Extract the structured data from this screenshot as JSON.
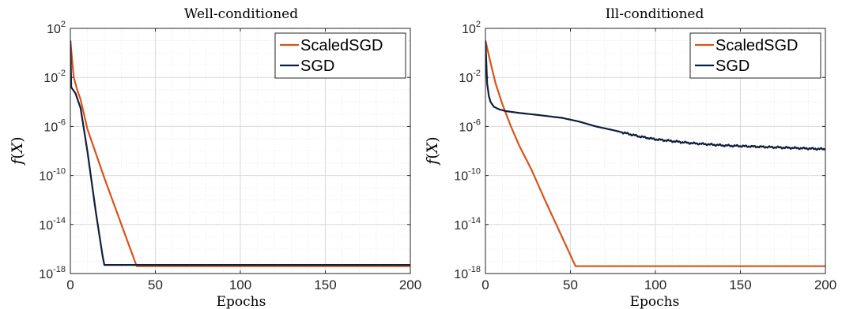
{
  "chart_data": [
    {
      "type": "line",
      "title": "Well-conditioned",
      "xlabel": "Epochs",
      "ylabel": "f(X)",
      "ylabel_parts": {
        "f": "f",
        "open": "(",
        "var": "X",
        "close": ")"
      },
      "x_ticks": [
        0,
        50,
        100,
        150,
        200
      ],
      "y_ticks": [
        {
          "base": "10",
          "exp": "2"
        },
        {
          "base": "10",
          "exp": "-2"
        },
        {
          "base": "10",
          "exp": "-6"
        },
        {
          "base": "10",
          "exp": "-10"
        },
        {
          "base": "10",
          "exp": "-14"
        },
        {
          "base": "10",
          "exp": "-18"
        }
      ],
      "xlim": [
        0,
        200
      ],
      "ylim_log10": [
        -18,
        2
      ],
      "yscale": "log",
      "grid": true,
      "legend_position": "top-right",
      "series": [
        {
          "name": "ScaledSGD",
          "color": "#d95319",
          "x": [
            0,
            2,
            4,
            6,
            10,
            20,
            30,
            39,
            200
          ],
          "log10_y": [
            1,
            -2,
            -3,
            -3.8,
            -6.2,
            -10.2,
            -14.0,
            -17.4,
            -17.4
          ]
        },
        {
          "name": "SGD",
          "color": "#0e1e3c",
          "x": [
            0,
            0.5,
            3,
            6,
            10,
            15,
            19,
            20,
            200
          ],
          "log10_y": [
            1,
            -2.8,
            -3.3,
            -4.5,
            -8.0,
            -13.0,
            -16.6,
            -17.3,
            -17.3
          ]
        }
      ]
    },
    {
      "type": "line",
      "title": "Ill-conditioned",
      "xlabel": "Epochs",
      "ylabel": "f(X)",
      "ylabel_parts": {
        "f": "f",
        "open": "(",
        "var": "X",
        "close": ")"
      },
      "x_ticks": [
        0,
        50,
        100,
        150,
        200
      ],
      "y_ticks": [
        {
          "base": "10",
          "exp": "2"
        },
        {
          "base": "10",
          "exp": "-2"
        },
        {
          "base": "10",
          "exp": "-6"
        },
        {
          "base": "10",
          "exp": "-10"
        },
        {
          "base": "10",
          "exp": "-14"
        },
        {
          "base": "10",
          "exp": "-18"
        }
      ],
      "xlim": [
        0,
        200
      ],
      "ylim_log10": [
        -18,
        2
      ],
      "yscale": "log",
      "grid": true,
      "legend_position": "top-right",
      "series": [
        {
          "name": "ScaledSGD",
          "color": "#d95319",
          "x": [
            0,
            3,
            6,
            10,
            15,
            20,
            27,
            35,
            45,
            53,
            200
          ],
          "log10_y": [
            1,
            -0.8,
            -2.5,
            -4.2,
            -6.0,
            -7.6,
            -9.5,
            -12.0,
            -15.0,
            -17.4,
            -17.4
          ]
        },
        {
          "name": "SGD",
          "color": "#0e1e3c",
          "x": [
            0,
            1,
            2,
            3,
            5,
            8,
            12,
            20,
            30,
            45,
            55,
            65,
            75,
            90,
            100,
            120,
            140,
            160,
            180,
            200
          ],
          "log10_y": [
            1,
            -2.5,
            -3.5,
            -4.0,
            -4.4,
            -4.6,
            -4.75,
            -4.9,
            -5.05,
            -5.3,
            -5.6,
            -6.0,
            -6.3,
            -6.8,
            -7.05,
            -7.35,
            -7.55,
            -7.65,
            -7.75,
            -7.85
          ],
          "noisy": true
        }
      ]
    }
  ]
}
